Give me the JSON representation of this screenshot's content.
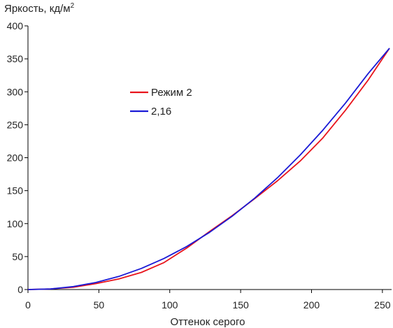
{
  "chart_data": {
    "type": "line",
    "ylabel": "Яркость, кд/м",
    "ylabel_sup": "2",
    "xlabel": "Оттенок серого",
    "xlim": [
      0,
      255
    ],
    "ylim": [
      0,
      400
    ],
    "xticks": [
      "0",
      "50",
      "100",
      "150",
      "200",
      "250"
    ],
    "yticks": [
      "0",
      "50",
      "100",
      "150",
      "200",
      "250",
      "300",
      "350",
      "400"
    ],
    "grid": false,
    "legend_placement": "upper-left-center",
    "series": [
      {
        "name": "Режим 2",
        "color": "#e8141c",
        "x": [
          0,
          16,
          32,
          48,
          64,
          80,
          96,
          112,
          128,
          144,
          160,
          176,
          192,
          208,
          224,
          240,
          255
        ],
        "y": [
          0,
          1,
          3.5,
          9,
          16,
          26,
          41,
          63,
          88,
          112,
          138,
          165,
          195,
          230,
          272,
          318,
          366
        ]
      },
      {
        "name": "2,16",
        "color": "#1a1ad6",
        "x": [
          0,
          16,
          32,
          48,
          64,
          80,
          96,
          112,
          128,
          144,
          160,
          176,
          192,
          208,
          224,
          240,
          255
        ],
        "y": [
          0,
          0.9,
          4.5,
          10.7,
          19.8,
          32,
          47.1,
          65.4,
          86.7,
          111.2,
          138.8,
          169.7,
          204.1,
          241.8,
          283,
          327.7,
          366
        ]
      }
    ]
  }
}
